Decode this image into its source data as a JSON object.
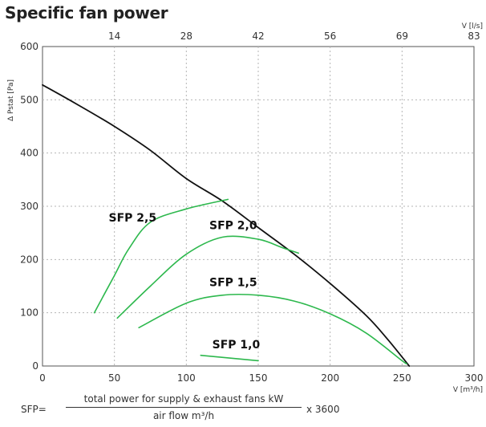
{
  "chart_data": {
    "type": "line",
    "title": "Specific fan power",
    "xlabel": "V [m³/h]",
    "ylabel": "Δ Pstat [Pa]",
    "secondary_xlabel": "V [l/s]",
    "xlim": [
      0,
      300
    ],
    "ylim": [
      0,
      600
    ],
    "x_ticks": [
      0,
      50,
      100,
      150,
      200,
      250,
      300
    ],
    "y_ticks": [
      0,
      100,
      200,
      300,
      400,
      500,
      600
    ],
    "secondary_x_ticks": [
      {
        "label": "14",
        "at": 50
      },
      {
        "label": "28",
        "at": 100
      },
      {
        "label": "42",
        "at": 150
      },
      {
        "label": "56",
        "at": 200
      },
      {
        "label": "69",
        "at": 250
      },
      {
        "label": "83",
        "at": 300
      }
    ],
    "grid": true,
    "series": [
      {
        "color": "#111111",
        "points": [
          [
            0,
            528
          ],
          [
            25,
            490
          ],
          [
            50,
            450
          ],
          [
            75,
            405
          ],
          [
            100,
            352
          ],
          [
            125,
            310
          ],
          [
            150,
            260
          ],
          [
            175,
            210
          ],
          [
            200,
            155
          ],
          [
            225,
            95
          ],
          [
            240,
            50
          ],
          [
            255,
            0
          ]
        ]
      },
      {
        "color": "#2db84d",
        "points": [
          [
            36,
            100
          ],
          [
            50,
            170
          ],
          [
            60,
            220
          ],
          [
            75,
            270
          ],
          [
            100,
            295
          ],
          [
            129,
            313
          ]
        ]
      },
      {
        "color": "#2db84d",
        "points": [
          [
            52,
            90
          ],
          [
            75,
            150
          ],
          [
            100,
            210
          ],
          [
            125,
            242
          ],
          [
            150,
            238
          ],
          [
            167,
            222
          ],
          [
            178,
            212
          ]
        ]
      },
      {
        "color": "#2db84d",
        "points": [
          [
            67,
            72
          ],
          [
            100,
            118
          ],
          [
            125,
            133
          ],
          [
            150,
            133
          ],
          [
            175,
            122
          ],
          [
            200,
            98
          ],
          [
            225,
            62
          ],
          [
            250,
            10
          ],
          [
            253,
            5
          ]
        ]
      },
      {
        "color": "#2db84d",
        "points": [
          [
            110,
            20
          ],
          [
            130,
            15
          ],
          [
            150,
            10
          ]
        ]
      }
    ],
    "annotations": [
      {
        "text": "SFP 2,5",
        "x": 46,
        "y": 271
      },
      {
        "text": "SFP 2,0",
        "x": 116,
        "y": 257
      },
      {
        "text": "SFP 1,5",
        "x": 116,
        "y": 150
      },
      {
        "text": "SFP 1,0",
        "x": 118,
        "y": 33
      }
    ]
  },
  "formula": {
    "lhs": "SFP=",
    "numerator": "total power for supply & exhaust fans kW",
    "denominator": "air flow m³/h",
    "rhs": "x 3600"
  }
}
